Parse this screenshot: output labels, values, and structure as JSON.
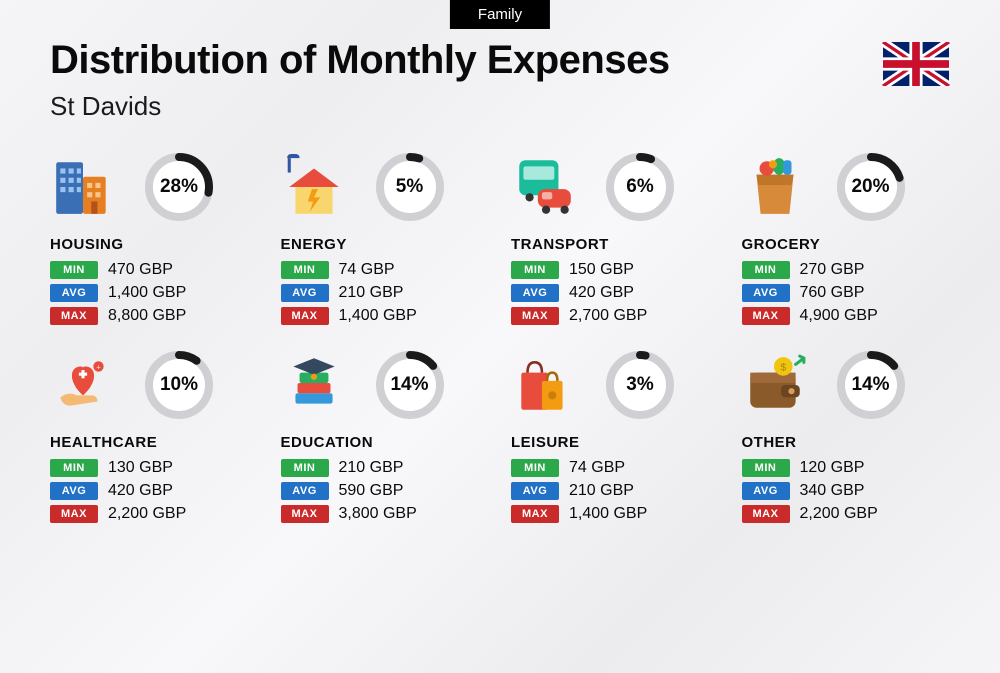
{
  "badge": "Family",
  "title": "Distribution of Monthly Expenses",
  "subtitle": "St Davids",
  "flag": "uk",
  "ring": {
    "radius": 30,
    "stroke_width": 8,
    "track_color": "#d0d0d4",
    "arc_color": "#1a1a1a",
    "bg_color": "#ffffff"
  },
  "stat_labels": {
    "min": "MIN",
    "avg": "AVG",
    "max": "MAX"
  },
  "stat_colors": {
    "min": "#2ba84a",
    "avg": "#2171c7",
    "max": "#c92a2a"
  },
  "categories": [
    {
      "key": "housing",
      "name": "HOUSING",
      "pct": 28,
      "min": "470 GBP",
      "avg": "1,400 GBP",
      "max": "8,800 GBP",
      "icon": "buildings"
    },
    {
      "key": "energy",
      "name": "ENERGY",
      "pct": 5,
      "min": "74 GBP",
      "avg": "210 GBP",
      "max": "1,400 GBP",
      "icon": "house-bolt"
    },
    {
      "key": "transport",
      "name": "TRANSPORT",
      "pct": 6,
      "min": "150 GBP",
      "avg": "420 GBP",
      "max": "2,700 GBP",
      "icon": "bus-car"
    },
    {
      "key": "grocery",
      "name": "GROCERY",
      "pct": 20,
      "min": "270 GBP",
      "avg": "760 GBP",
      "max": "4,900 GBP",
      "icon": "grocery-bag"
    },
    {
      "key": "healthcare",
      "name": "HEALTHCARE",
      "pct": 10,
      "min": "130 GBP",
      "avg": "420 GBP",
      "max": "2,200 GBP",
      "icon": "heart-hand"
    },
    {
      "key": "education",
      "name": "EDUCATION",
      "pct": 14,
      "min": "210 GBP",
      "avg": "590 GBP",
      "max": "3,800 GBP",
      "icon": "books-cap"
    },
    {
      "key": "leisure",
      "name": "LEISURE",
      "pct": 3,
      "min": "74 GBP",
      "avg": "210 GBP",
      "max": "1,400 GBP",
      "icon": "shopping-bags"
    },
    {
      "key": "other",
      "name": "OTHER",
      "pct": 14,
      "min": "120 GBP",
      "avg": "340 GBP",
      "max": "2,200 GBP",
      "icon": "wallet"
    }
  ]
}
